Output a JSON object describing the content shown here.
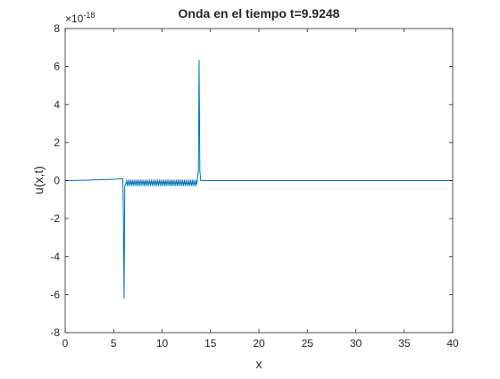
{
  "chart_data": {
    "type": "line",
    "title": "Onda en el tiempo t=9.9248",
    "xlabel": "x",
    "ylabel": "u(x,t)",
    "exponent_base": "×10",
    "exponent_power": "-18",
    "xlim": [
      0,
      40
    ],
    "ylim": [
      -8,
      8
    ],
    "xticks": [
      0,
      5,
      10,
      15,
      20,
      25,
      30,
      35,
      40
    ],
    "yticks": [
      -8,
      -6,
      -4,
      -2,
      0,
      2,
      4,
      6,
      8
    ],
    "grid": false,
    "series_color": "#0072BD",
    "series": [
      {
        "x": [
          0,
          2,
          4,
          5.5,
          5.95,
          6.0,
          6.08,
          6.15,
          6.3,
          7,
          8,
          9,
          10,
          11,
          12,
          13,
          13.6,
          13.75,
          13.82,
          13.9,
          14.0,
          16,
          20,
          30,
          40
        ],
        "y": [
          0,
          0.02,
          0.05,
          0.08,
          0.1,
          -1.5,
          -6.2,
          -0.3,
          -0.1,
          -0.12,
          -0.1,
          -0.12,
          -0.1,
          -0.12,
          -0.13,
          -0.15,
          -0.15,
          0.5,
          6.35,
          0.5,
          0,
          0,
          0,
          0,
          0
        ]
      }
    ]
  }
}
